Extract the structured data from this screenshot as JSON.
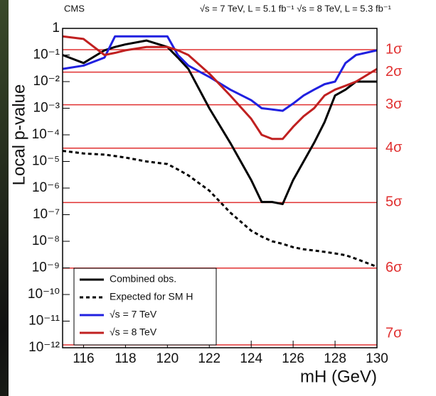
{
  "chart_data": {
    "type": "line",
    "header_left": "CMS",
    "header_right": "√s = 7 TeV, L = 5.1 fb⁻¹  √s = 8 TeV, L = 5.3 fb⁻¹",
    "xlabel": "mH (GeV)",
    "ylabel": "Local p-value",
    "log_y": true,
    "xlim": [
      115,
      130
    ],
    "xticks": [
      116,
      118,
      120,
      122,
      124,
      126,
      128,
      130
    ],
    "ylim": [
      1e-12,
      1
    ],
    "yticks": [
      1,
      {
        "value": 0.1,
        "label": "10⁻¹"
      },
      {
        "value": 0.01,
        "label": "10⁻²"
      },
      {
        "value": 0.001,
        "label": "10⁻³"
      },
      {
        "value": 0.0001,
        "label": "10⁻⁴"
      },
      {
        "value": 1e-05,
        "label": "10⁻⁵"
      },
      {
        "value": 1e-06,
        "label": "10⁻⁶"
      },
      {
        "value": 1e-07,
        "label": "10⁻⁷"
      },
      {
        "value": 1e-08,
        "label": "10⁻⁸"
      },
      {
        "value": 1e-09,
        "label": "10⁻⁹"
      },
      {
        "value": 1e-10,
        "label": "10⁻¹⁰"
      },
      {
        "value": 1e-11,
        "label": "10⁻¹¹"
      },
      {
        "value": 1e-12,
        "label": "10⁻¹²"
      }
    ],
    "sigma_lines": [
      {
        "value": 0.1587,
        "label": "1σ"
      },
      {
        "value": 0.02275,
        "label": "2σ"
      },
      {
        "value": 0.00135,
        "label": "3σ"
      },
      {
        "value": 3.17e-05,
        "label": "4σ"
      },
      {
        "value": 2.87e-07,
        "label": "5σ"
      },
      {
        "value": 9.87e-10,
        "label": "6σ"
      },
      {
        "value": 1.28e-12,
        "label": "7σ"
      }
    ],
    "sigma_color": "#e03030",
    "legend": "lower left",
    "x": [
      115,
      116,
      117,
      117.5,
      118,
      119,
      120,
      120.5,
      121,
      122,
      123,
      124,
      124.5,
      125,
      125.5,
      126,
      126.5,
      127,
      127.5,
      128,
      128.5,
      129,
      130
    ],
    "series": [
      {
        "name": "Combined  obs.",
        "color": "#000000",
        "dashed": false,
        "values": [
          0.1,
          0.05,
          0.15,
          0.2,
          0.25,
          0.35,
          0.2,
          0.08,
          0.03,
          0.001,
          5e-05,
          2e-06,
          3e-07,
          3e-07,
          2.5e-07,
          2e-06,
          1e-05,
          5e-05,
          0.0003,
          0.003,
          0.005,
          0.01,
          0.01
        ]
      },
      {
        "name": "Expected for SM H",
        "color": "#000000",
        "dashed": true,
        "values": [
          2.5e-05,
          2e-05,
          1.8e-05,
          1.6e-05,
          1.4e-05,
          1e-05,
          8e-06,
          5e-06,
          3e-06,
          8e-07,
          1.2e-07,
          2.5e-08,
          1.5e-08,
          1e-08,
          8e-09,
          6e-09,
          5e-09,
          4.5e-09,
          4e-09,
          3.5e-09,
          3e-09,
          2.2e-09,
          1.1e-09
        ]
      },
      {
        "name": "√s = 7 TeV",
        "color": "#2020e0",
        "dashed": false,
        "values": [
          0.03,
          0.04,
          0.08,
          0.5,
          0.5,
          0.5,
          0.5,
          0.1,
          0.04,
          0.015,
          0.005,
          0.002,
          0.001,
          0.0009,
          0.0008,
          0.0015,
          0.003,
          0.005,
          0.008,
          0.01,
          0.05,
          0.1,
          0.15
        ]
      },
      {
        "name": "√s = 8 TeV",
        "color": "#c02020",
        "dashed": false,
        "values": [
          0.5,
          0.4,
          0.1,
          0.12,
          0.15,
          0.2,
          0.2,
          0.15,
          0.1,
          0.02,
          0.003,
          0.0004,
          0.0001,
          7e-05,
          7e-05,
          0.0002,
          0.0005,
          0.001,
          0.003,
          0.005,
          0.007,
          0.01,
          0.03
        ]
      }
    ]
  }
}
